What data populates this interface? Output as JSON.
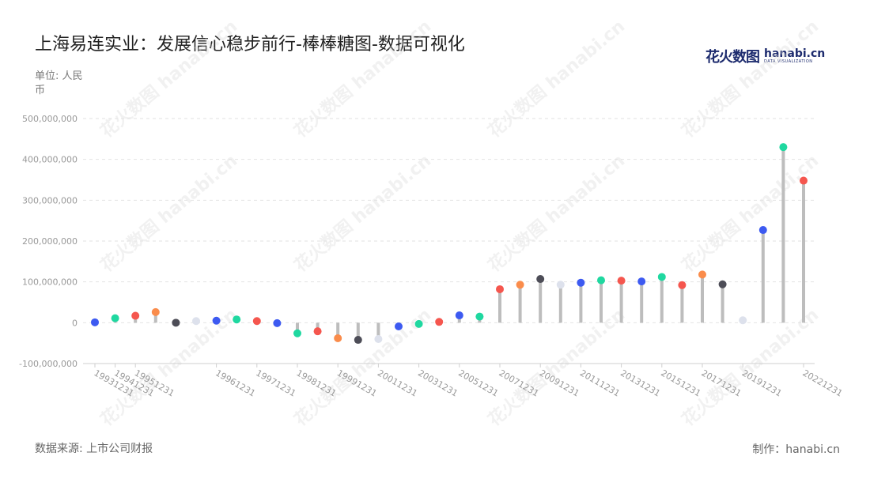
{
  "header": {
    "title": "上海易连实业：发展信心稳步前行-棒棒糖图-数据可视化",
    "unit": "单位: 人民币"
  },
  "brand": {
    "logo_mark": "花火数图",
    "logo_name": "hanabi.cn",
    "logo_tagline": "DATA VISUALIZATION",
    "watermark": "花火数图 hanabi.cn"
  },
  "footer": {
    "source": "数据来源: 上市公司财报",
    "maker": "制作：hanabi.cn"
  },
  "chart_data": {
    "type": "lollipop",
    "title": "上海易连实业：发展信心稳步前行-棒棒糖图-数据可视化",
    "ylabel": "单位: 人民币",
    "ylim": [
      -100000000,
      500000000
    ],
    "yticks": [
      -100000000,
      0,
      100000000,
      200000000,
      300000000,
      400000000,
      500000000
    ],
    "ytick_labels": [
      "-100,000,000",
      "0",
      "100,000,000",
      "200,000,000",
      "300,000,000",
      "400,000,000",
      "500,000,000"
    ],
    "xtick_labels": [
      "19931231",
      "19941231",
      "19951231",
      "19961231",
      "19971231",
      "19981231",
      "19991231",
      "20011231",
      "20031231",
      "20051231",
      "20071231",
      "20091231",
      "20111231",
      "20131231",
      "20151231",
      "20171231",
      "20191231",
      "20221231"
    ],
    "grid": true,
    "points": [
      {
        "x": "19931231",
        "value": 1000000,
        "color": "#3d5af1"
      },
      {
        "x": "19941231",
        "value": 11000000,
        "color": "#1fd8a0"
      },
      {
        "x": "19951231",
        "value": 17000000,
        "color": "#f5564e"
      },
      {
        "x": "",
        "value": 26000000,
        "color": "#fa8c4b"
      },
      {
        "x": "",
        "value": 0,
        "color": "#4d4d57"
      },
      {
        "x": "",
        "value": 4000000,
        "color": "#dde1ec"
      },
      {
        "x": "19961231",
        "value": 5000000,
        "color": "#3d5af1"
      },
      {
        "x": "",
        "value": 8000000,
        "color": "#1fd8a0"
      },
      {
        "x": "19971231",
        "value": 4000000,
        "color": "#f5564e"
      },
      {
        "x": "",
        "value": -1000000,
        "color": "#3d5af1"
      },
      {
        "x": "19981231",
        "value": -26000000,
        "color": "#1fd8a0"
      },
      {
        "x": "",
        "value": -21000000,
        "color": "#f5564e"
      },
      {
        "x": "19991231",
        "value": -38000000,
        "color": "#fa8c4b"
      },
      {
        "x": "",
        "value": -42000000,
        "color": "#4d4d57"
      },
      {
        "x": "20011231",
        "value": -40000000,
        "color": "#dde1ec"
      },
      {
        "x": "",
        "value": -9000000,
        "color": "#3d5af1"
      },
      {
        "x": "20031231",
        "value": -3000000,
        "color": "#1fd8a0"
      },
      {
        "x": "",
        "value": 2000000,
        "color": "#f5564e"
      },
      {
        "x": "20051231",
        "value": 18000000,
        "color": "#3d5af1"
      },
      {
        "x": "",
        "value": 15000000,
        "color": "#1fd8a0"
      },
      {
        "x": "20071231",
        "value": 82000000,
        "color": "#f5564e"
      },
      {
        "x": "",
        "value": 93000000,
        "color": "#fa8c4b"
      },
      {
        "x": "20091231",
        "value": 107000000,
        "color": "#4d4d57"
      },
      {
        "x": "",
        "value": 93000000,
        "color": "#dde1ec"
      },
      {
        "x": "20111231",
        "value": 98000000,
        "color": "#3d5af1"
      },
      {
        "x": "",
        "value": 104000000,
        "color": "#1fd8a0"
      },
      {
        "x": "20131231",
        "value": 103000000,
        "color": "#f5564e"
      },
      {
        "x": "",
        "value": 101000000,
        "color": "#3d5af1"
      },
      {
        "x": "20151231",
        "value": 112000000,
        "color": "#1fd8a0"
      },
      {
        "x": "",
        "value": 92000000,
        "color": "#f5564e"
      },
      {
        "x": "20171231",
        "value": 118000000,
        "color": "#fa8c4b"
      },
      {
        "x": "",
        "value": 94000000,
        "color": "#4d4d57"
      },
      {
        "x": "20191231",
        "value": 6000000,
        "color": "#dde1ec"
      },
      {
        "x": "",
        "value": 227000000,
        "color": "#3d5af1"
      },
      {
        "x": "",
        "value": 430000000,
        "color": "#1fd8a0"
      },
      {
        "x": "20221231",
        "value": 348000000,
        "color": "#f5564e"
      }
    ]
  }
}
